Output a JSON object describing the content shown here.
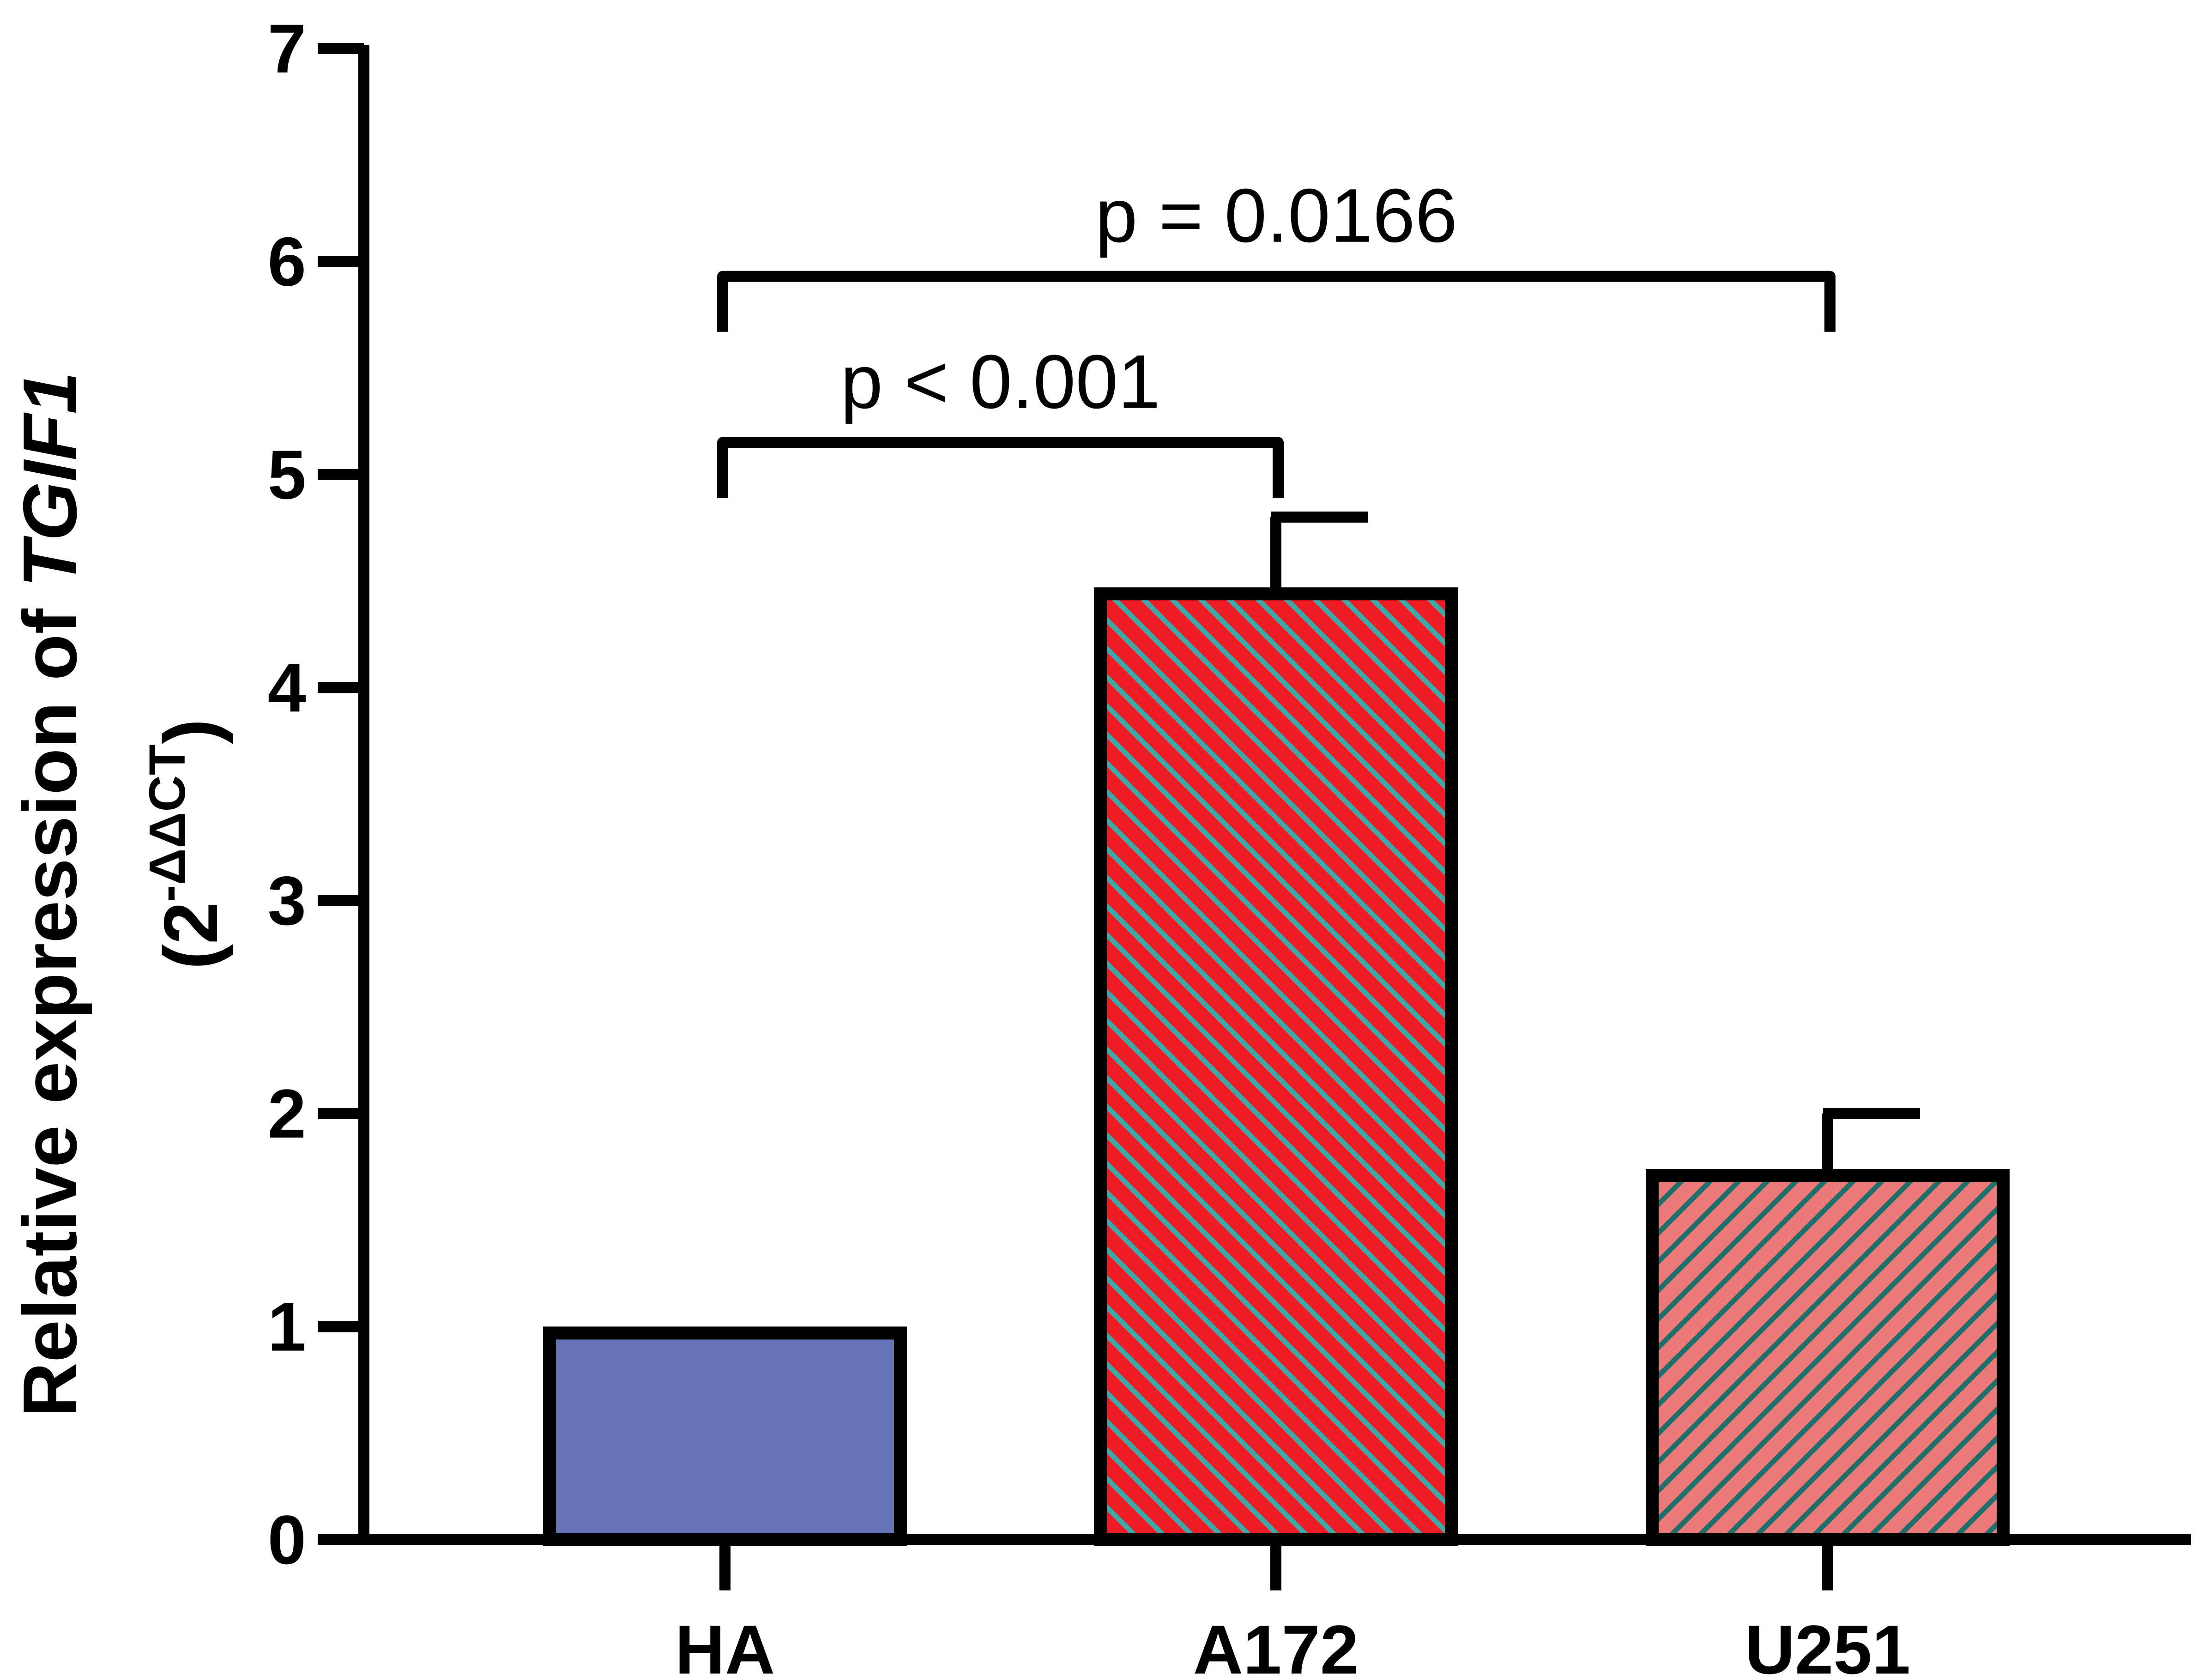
{
  "chart_data": {
    "type": "bar",
    "categories": [
      "HA",
      "A172",
      "U251"
    ],
    "values": [
      0.97,
      4.44,
      1.71
    ],
    "errors": [
      0,
      0.36,
      0.29
    ],
    "ylim": [
      0,
      7
    ],
    "yticks": [
      "0",
      "1",
      "2",
      "3",
      "4",
      "5",
      "6",
      "7"
    ],
    "ylabel": {
      "line1_prefix": "Relative expression of ",
      "line1_gene": "TGIF1",
      "line2_open": "(2",
      "line2_sup": "-ΔΔCT",
      "line2_close": ")"
    },
    "bar_styles": [
      {
        "fill": "#6574b6",
        "hatch": "none",
        "hatch_color": ""
      },
      {
        "fill": "#ee1c24",
        "hatch": "diagonal-down",
        "hatch_color": "#3fa7a6"
      },
      {
        "fill": "#eb7a78",
        "hatch": "diagonal-up",
        "hatch_color": "#1f6e6b"
      }
    ],
    "comparisons": [
      {
        "from": 0,
        "to": 1,
        "y": 5.15,
        "label": "p < 0.001"
      },
      {
        "from": 0,
        "to": 2,
        "y": 5.93,
        "label": "p = 0.0166"
      }
    ],
    "grid": false,
    "legend": "none"
  }
}
